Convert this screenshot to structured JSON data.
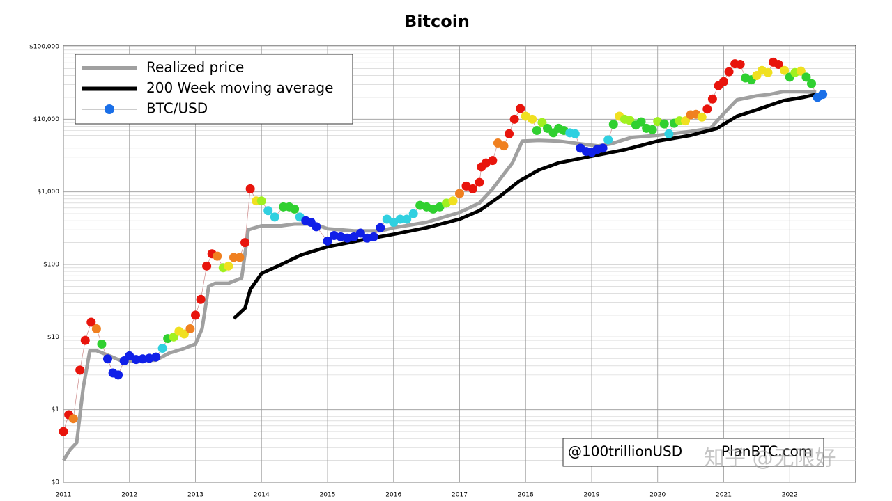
{
  "chart_data": {
    "type": "line",
    "title": "Bitcoin",
    "log_y": true,
    "grid": true,
    "legend": "upper left",
    "xlim": [
      2011,
      2023
    ],
    "xticks": [
      2011,
      2012,
      2013,
      2014,
      2015,
      2016,
      2017,
      2018,
      2019,
      2020,
      2021,
      2022
    ],
    "ylim": [
      0.1,
      100000
    ],
    "yticks": [
      {
        "value": 0.1,
        "label": "$0"
      },
      {
        "value": 1,
        "label": "$1"
      },
      {
        "value": 10,
        "label": "$10"
      },
      {
        "value": 100,
        "label": "$100"
      },
      {
        "value": 1000,
        "label": "$1,000"
      },
      {
        "value": 10000,
        "label": "$10,000"
      },
      {
        "value": 100000,
        "label": "$100,000"
      }
    ],
    "series": [
      {
        "name": "Realized price",
        "color": "#a0a0a0",
        "style": "line",
        "x": [
          2011.0,
          2011.1,
          2011.2,
          2011.3,
          2011.4,
          2011.5,
          2011.7,
          2011.9,
          2012.0,
          2012.4,
          2012.6,
          2012.8,
          2013.0,
          2013.1,
          2013.2,
          2013.3,
          2013.5,
          2013.7,
          2013.8,
          2014.0,
          2014.3,
          2014.5,
          2014.8,
          2015.0,
          2015.4,
          2015.8,
          2016.0,
          2016.5,
          2017.0,
          2017.3,
          2017.5,
          2017.8,
          2017.95,
          2018.2,
          2018.5,
          2018.9,
          2019.1,
          2019.3,
          2019.6,
          2020.0,
          2020.5,
          2020.8,
          2021.0,
          2021.2,
          2021.5,
          2021.7,
          2021.9,
          2022.2,
          2022.4
        ],
        "values": [
          0.2,
          0.28,
          0.35,
          2,
          6.5,
          6.5,
          5.5,
          4.6,
          4.7,
          4.8,
          6,
          6.8,
          8,
          13,
          50,
          55,
          55,
          65,
          300,
          340,
          340,
          360,
          360,
          310,
          290,
          290,
          320,
          380,
          520,
          700,
          1100,
          2500,
          5000,
          5100,
          5000,
          4500,
          4300,
          4600,
          5600,
          6000,
          6800,
          7500,
          12000,
          18500,
          21000,
          22000,
          24000,
          24000,
          23500
        ]
      },
      {
        "name": "200 Week moving average",
        "color": "#000000",
        "style": "line",
        "x": [
          2013.58,
          2013.75,
          2013.83,
          2014.0,
          2014.3,
          2014.6,
          2015.0,
          2015.5,
          2016.0,
          2016.5,
          2017.0,
          2017.3,
          2017.6,
          2017.9,
          2018.2,
          2018.5,
          2019.0,
          2019.5,
          2020.0,
          2020.5,
          2020.9,
          2021.2,
          2021.5,
          2021.9,
          2022.2,
          2022.4
        ],
        "values": [
          18,
          25,
          45,
          75,
          100,
          135,
          175,
          215,
          260,
          320,
          420,
          550,
          850,
          1400,
          2000,
          2500,
          3100,
          3800,
          5000,
          6000,
          7500,
          11000,
          13500,
          18000,
          20000,
          22000
        ]
      },
      {
        "name": "BTC/USD",
        "color": "#1a6fe8",
        "style": "points",
        "x": [
          2011.0,
          2011.08,
          2011.15,
          2011.25,
          2011.33,
          2011.42,
          2011.5,
          2011.58,
          2011.67,
          2011.75,
          2011.83,
          2011.92,
          2012.0,
          2012.1,
          2012.2,
          2012.3,
          2012.4,
          2012.5,
          2012.58,
          2012.67,
          2012.75,
          2012.83,
          2012.92,
          2013.0,
          2013.08,
          2013.17,
          2013.25,
          2013.33,
          2013.42,
          2013.5,
          2013.58,
          2013.67,
          2013.75,
          2013.83,
          2013.92,
          2014.0,
          2014.1,
          2014.2,
          2014.33,
          2014.42,
          2014.5,
          2014.58,
          2014.67,
          2014.75,
          2014.83,
          2015.0,
          2015.1,
          2015.2,
          2015.3,
          2015.4,
          2015.5,
          2015.6,
          2015.7,
          2015.8,
          2015.9,
          2016.0,
          2016.1,
          2016.2,
          2016.3,
          2016.4,
          2016.5,
          2016.6,
          2016.7,
          2016.8,
          2016.9,
          2017.0,
          2017.1,
          2017.2,
          2017.3,
          2017.33,
          2017.4,
          2017.5,
          2017.58,
          2017.67,
          2017.75,
          2017.83,
          2017.92,
          2018.0,
          2018.1,
          2018.17,
          2018.25,
          2018.33,
          2018.42,
          2018.5,
          2018.58,
          2018.67,
          2018.75,
          2018.83,
          2018.92,
          2019.0,
          2019.08,
          2019.17,
          2019.25,
          2019.33,
          2019.42,
          2019.5,
          2019.58,
          2019.67,
          2019.75,
          2019.83,
          2019.92,
          2020.0,
          2020.1,
          2020.17,
          2020.25,
          2020.33,
          2020.42,
          2020.5,
          2020.58,
          2020.67,
          2020.75,
          2020.83,
          2020.92,
          2021.0,
          2021.08,
          2021.17,
          2021.25,
          2021.33,
          2021.42,
          2021.5,
          2021.58,
          2021.67,
          2021.75,
          2021.83,
          2021.92,
          2022.0,
          2022.08,
          2022.17,
          2022.25,
          2022.33,
          2022.42,
          2022.5
        ],
        "values": [
          0.5,
          0.85,
          0.75,
          3.5,
          9,
          16,
          13,
          8,
          5,
          3.2,
          3,
          4.7,
          5.5,
          4.9,
          5,
          5.1,
          5.3,
          7,
          9.5,
          10,
          12,
          11,
          13,
          20,
          33,
          95,
          140,
          130,
          90,
          95,
          125,
          125,
          200,
          1100,
          750,
          750,
          550,
          450,
          620,
          620,
          580,
          450,
          400,
          380,
          330,
          210,
          250,
          240,
          230,
          240,
          270,
          230,
          240,
          320,
          420,
          380,
          420,
          420,
          500,
          650,
          620,
          580,
          620,
          700,
          750,
          950,
          1200,
          1100,
          1350,
          2200,
          2500,
          2700,
          4700,
          4300,
          6300,
          10000,
          14000,
          11000,
          10000,
          7000,
          9000,
          7500,
          6500,
          7500,
          7000,
          6500,
          6300,
          4000,
          3600,
          3500,
          3800,
          4000,
          5200,
          8500,
          11000,
          10000,
          9600,
          8300,
          9200,
          7500,
          7200,
          9300,
          8600,
          6300,
          8800,
          9500,
          9500,
          11500,
          11700,
          10700,
          13800,
          19000,
          29000,
          33000,
          45000,
          58000,
          57000,
          37000,
          35000,
          40000,
          47000,
          44000,
          61000,
          57000,
          47000,
          38000,
          44000,
          46000,
          38000,
          31000,
          20000,
          22000
        ],
        "colors": [
          "#e8140c",
          "#e8140c",
          "#f08020",
          "#e8140c",
          "#e8140c",
          "#e8140c",
          "#f08020",
          "#30d030",
          "#1020e8",
          "#1020e8",
          "#1020e8",
          "#1020e8",
          "#1020e8",
          "#1020e8",
          "#1020e8",
          "#1020e8",
          "#1020e8",
          "#30d0e0",
          "#30d030",
          "#a0f020",
          "#f0e020",
          "#f0e020",
          "#f08020",
          "#e8140c",
          "#e8140c",
          "#e8140c",
          "#e8140c",
          "#f08020",
          "#a0f020",
          "#f0e020",
          "#f08020",
          "#f08020",
          "#e8140c",
          "#e8140c",
          "#f0e020",
          "#a0f020",
          "#30d0e0",
          "#30d0e0",
          "#30d030",
          "#30d030",
          "#30d030",
          "#30d0e0",
          "#1020e8",
          "#1020e8",
          "#1020e8",
          "#1020e8",
          "#1020e8",
          "#1020e8",
          "#1020e8",
          "#1020e8",
          "#1020e8",
          "#1020e8",
          "#1020e8",
          "#1020e8",
          "#30d0e0",
          "#30d0e0",
          "#30d0e0",
          "#30d0e0",
          "#30d0e0",
          "#30d030",
          "#30d030",
          "#30d030",
          "#30d030",
          "#a0f020",
          "#f0e020",
          "#f08020",
          "#e8140c",
          "#e8140c",
          "#e8140c",
          "#e8140c",
          "#e8140c",
          "#e8140c",
          "#f08020",
          "#f08020",
          "#e8140c",
          "#e8140c",
          "#e8140c",
          "#f0e020",
          "#f0e020",
          "#30d030",
          "#a0f020",
          "#30d030",
          "#30d030",
          "#30d030",
          "#30d030",
          "#30d0e0",
          "#30d0e0",
          "#1020e8",
          "#1020e8",
          "#1020e8",
          "#1020e8",
          "#1020e8",
          "#30d0e0",
          "#30d030",
          "#f0e020",
          "#a0f020",
          "#a0f020",
          "#30d030",
          "#30d030",
          "#30d030",
          "#30d030",
          "#a0f020",
          "#30d030",
          "#30d0e0",
          "#30d030",
          "#a0f020",
          "#f0e020",
          "#f08020",
          "#f08020",
          "#f0e020",
          "#e8140c",
          "#e8140c",
          "#e8140c",
          "#e8140c",
          "#e8140c",
          "#e8140c",
          "#e8140c",
          "#30d030",
          "#30d030",
          "#f0e020",
          "#f0e020",
          "#f0e020",
          "#e8140c",
          "#e8140c",
          "#f0e020",
          "#30d030",
          "#a0f020",
          "#f0e020",
          "#30d030",
          "#30d030",
          "#1a6fe8",
          "#1a6fe8"
        ]
      }
    ],
    "annotations": [
      "@100trillionUSD",
      "PlanBTC.com",
      "知乎 @无限好"
    ]
  }
}
